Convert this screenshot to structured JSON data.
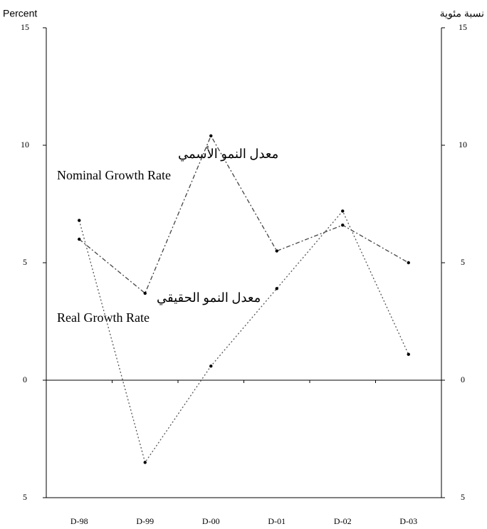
{
  "chart_data": {
    "type": "line",
    "y_label_left": "Percent",
    "y_label_right": "نسبة مئوية",
    "categories": [
      "D-98",
      "D-99",
      "D-00",
      "D-01",
      "D-02",
      "D-03"
    ],
    "series": [
      {
        "name": "Nominal Growth Rate",
        "name_ar": "معدل النمو الأسمي",
        "color": "#444444",
        "dash": "6,3,2,3",
        "values": [
          6.0,
          3.7,
          10.4,
          5.5,
          6.6,
          5.0
        ]
      },
      {
        "name": "Real Growth Rate",
        "name_ar": "معدل النمو الحقيقي",
        "color": "#555555",
        "dash": "2,3",
        "values": [
          6.8,
          -3.5,
          0.6,
          3.9,
          7.2,
          1.1
        ]
      }
    ],
    "ylim": [
      -5,
      15
    ],
    "yticks": [
      {
        "value": -5,
        "label": "5"
      },
      0,
      5,
      10,
      15
    ],
    "grid": false
  }
}
